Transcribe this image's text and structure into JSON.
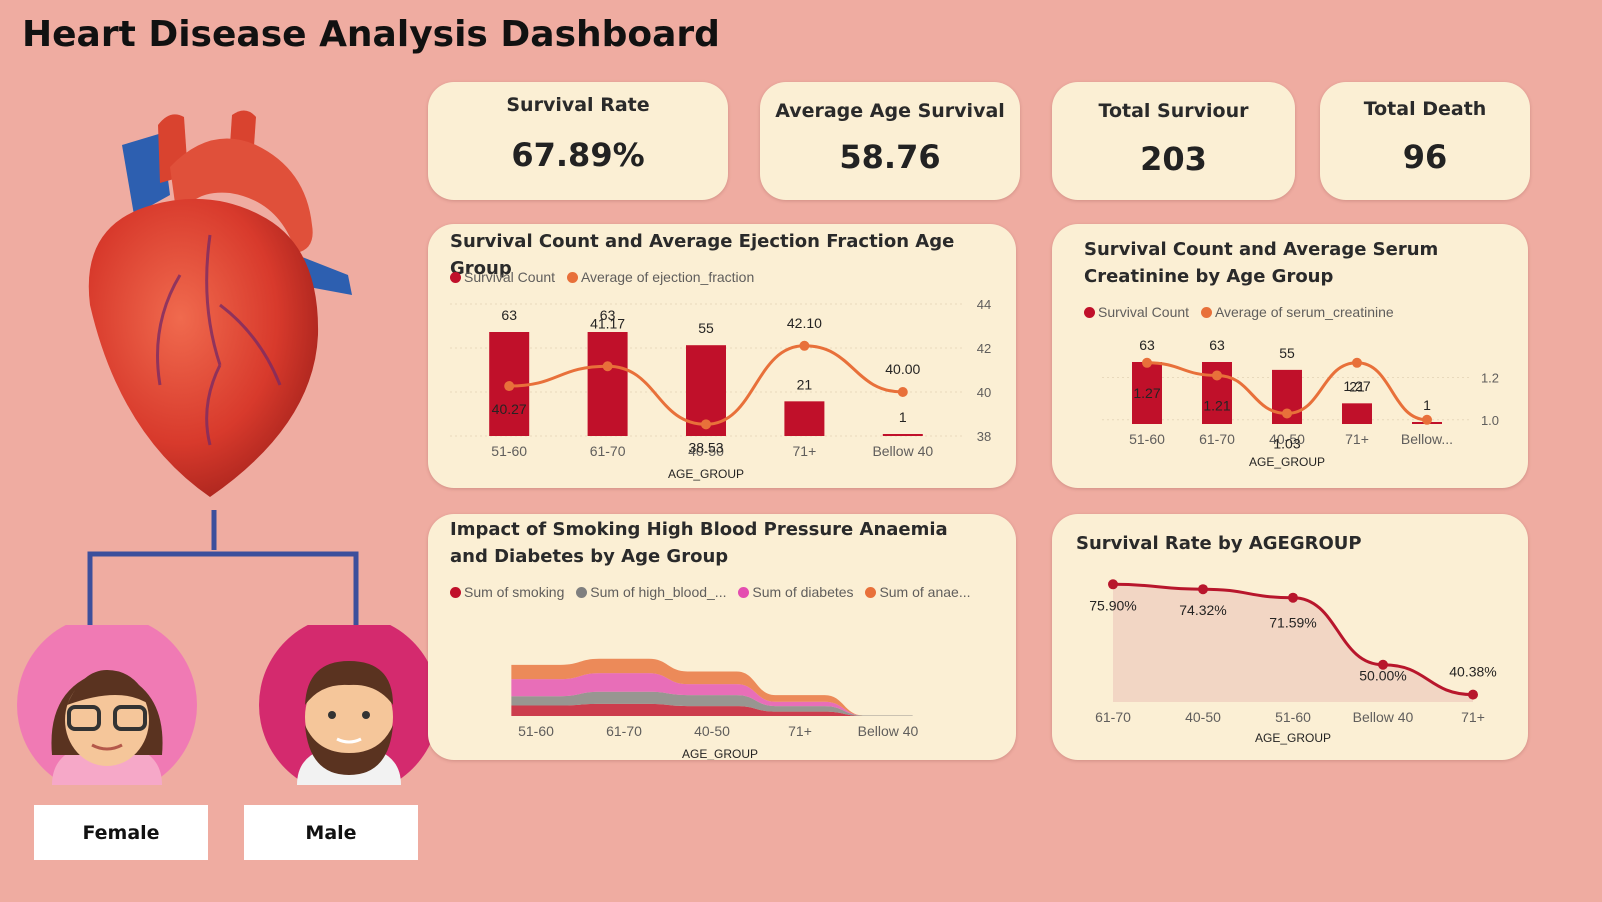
{
  "title": "Heart Disease Analysis Dashboard",
  "colors": {
    "background": "#efaca1",
    "card": "#fbefd4",
    "red": "#c0102a",
    "orange": "#e8703a",
    "gray": "#7f7f7f",
    "pink": "#e44db0",
    "line_dark": "#b8162c"
  },
  "kpis": [
    {
      "label": "Survival Rate",
      "value": "67.89%"
    },
    {
      "label": "Average Age Survival",
      "value": "58.76"
    },
    {
      "label": "Total Surviour",
      "value": "203"
    },
    {
      "label": "Total Death",
      "value": "96"
    }
  ],
  "buttons": {
    "female": "Female",
    "male": "Male"
  },
  "icons": [
    "heart-illustration",
    "family-tree-connector",
    "female-avatar-icon",
    "male-avatar-icon"
  ],
  "chart_data": [
    {
      "type": "bar",
      "title": "Survival Count and Average Ejection Fraction Age Group",
      "legend": [
        "Survival Count",
        "Average of ejection_fraction"
      ],
      "xlabel": "AGE_GROUP",
      "categories": [
        "51-60",
        "61-70",
        "40-50",
        "71+",
        "Bellow 40"
      ],
      "series": [
        {
          "name": "Survival Count",
          "chart": "bar",
          "values": [
            63,
            63,
            55,
            21,
            1
          ],
          "labels": [
            "63",
            "63",
            "55",
            "21",
            "1"
          ]
        },
        {
          "name": "Average of ejection_fraction",
          "chart": "line",
          "values": [
            40.27,
            41.17,
            38.53,
            42.1,
            40.0
          ],
          "labels": [
            "40.27",
            "41.17",
            "38.53",
            "42.10",
            "40.00"
          ]
        }
      ],
      "y2_ticks": [
        "44",
        "42",
        "40",
        "38"
      ],
      "y2lim": [
        38,
        44
      ]
    },
    {
      "type": "bar",
      "title": "Survival Count and Average Serum Creatinine by Age Group",
      "legend": [
        "Survival Count",
        "Average of serum_creatinine"
      ],
      "xlabel": "AGE_GROUP",
      "categories": [
        "51-60",
        "61-70",
        "40-50",
        "71+",
        "Bellow..."
      ],
      "series": [
        {
          "name": "Survival Count",
          "chart": "bar",
          "values": [
            63,
            63,
            55,
            21,
            1
          ],
          "labels": [
            "63",
            "63",
            "55",
            "21",
            "1"
          ]
        },
        {
          "name": "Average of serum_creatinine",
          "chart": "line",
          "values": [
            1.27,
            1.21,
            1.03,
            1.27,
            1.0
          ],
          "labels": [
            "1.27",
            "1.21",
            "1.03",
            "1.27",
            ""
          ]
        }
      ],
      "y2_ticks": [
        "1.2",
        "1.0"
      ],
      "y2lim": [
        0.98,
        1.34
      ]
    },
    {
      "type": "area",
      "title": "Impact of Smoking High Blood Pressure Anaemia and Diabetes by Age Group",
      "legend": [
        "Sum of smoking",
        "Sum of high_blood_...",
        "Sum of diabetes",
        "Sum of anae..."
      ],
      "xlabel": "AGE_GROUP",
      "categories": [
        "51-60",
        "61-70",
        "40-50",
        "71+",
        "Bellow 40"
      ],
      "series": [
        {
          "name": "Sum of smoking",
          "values": [
            19,
            22,
            18,
            8,
            0
          ]
        },
        {
          "name": "Sum of high_blood_...",
          "values": [
            17,
            22,
            20,
            10,
            1
          ]
        },
        {
          "name": "Sum of diabetes",
          "values": [
            31,
            34,
            20,
            8,
            0
          ]
        },
        {
          "name": "Sum of anae...",
          "values": [
            26,
            26,
            23,
            12,
            0
          ]
        }
      ]
    },
    {
      "type": "area",
      "title": "Survival Rate by AGEGROUP",
      "xlabel": "AGE_GROUP",
      "categories": [
        "61-70",
        "40-50",
        "51-60",
        "Bellow 40",
        "71+"
      ],
      "values": [
        75.9,
        74.32,
        71.59,
        50.0,
        40.38
      ],
      "labels": [
        "75.90%",
        "74.32%",
        "71.59%",
        "50.00%",
        "40.38%"
      ]
    }
  ]
}
